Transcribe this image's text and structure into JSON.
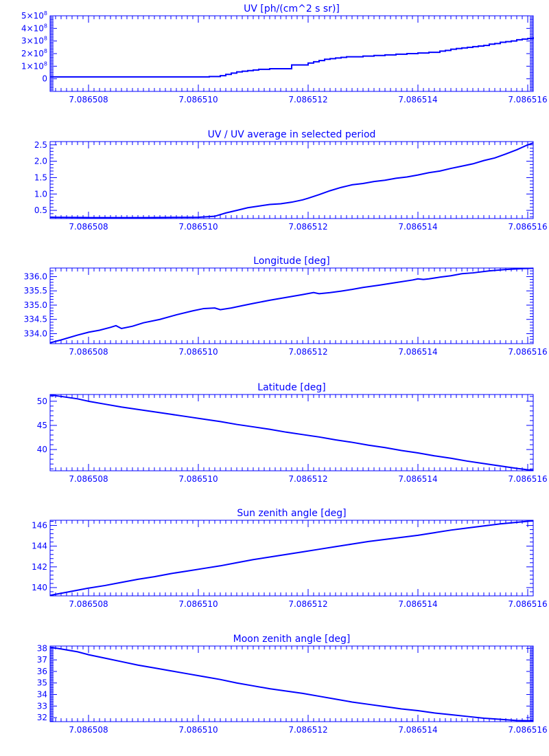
{
  "chart_data": [
    {
      "type": "line",
      "title": "UV [ph/(cm^2 s sr)]",
      "xlabel": "",
      "ylabel": "",
      "xlim": [
        7.0865073,
        7.0865161
      ],
      "ylim": [
        -100000000,
        500000000
      ],
      "x_ticks": [
        "7.086508",
        "7.086510",
        "7.086512",
        "7.086514",
        "7.086516"
      ],
      "y_ticks": [
        {
          "value": 0,
          "mantissa": "0",
          "exponent": ""
        },
        {
          "value": 100000000,
          "mantissa": "1×10",
          "exponent": "8"
        },
        {
          "value": 200000000,
          "mantissa": "2×10",
          "exponent": "8"
        },
        {
          "value": 300000000,
          "mantissa": "3×10",
          "exponent": "8"
        },
        {
          "value": 400000000,
          "mantissa": "4×10",
          "exponent": "8"
        },
        {
          "value": 500000000,
          "mantissa": "5×10",
          "exponent": "8"
        }
      ],
      "series": [
        {
          "step": true,
          "x": [
            7.0865073,
            7.086508,
            7.086509,
            7.08651,
            7.0865102,
            7.0865104,
            7.0865105,
            7.0865106,
            7.0865107,
            7.0865108,
            7.0865109,
            7.086511,
            7.0865111,
            7.0865113,
            7.0865115,
            7.0865117,
            7.0865118,
            7.086512,
            7.0865121,
            7.0865122,
            7.0865123,
            7.0865124,
            7.0865125,
            7.0865126,
            7.0865127,
            7.0865128,
            7.086513,
            7.0865132,
            7.0865134,
            7.0865136,
            7.0865138,
            7.086514,
            7.0865142,
            7.0865144,
            7.0865145,
            7.0865146,
            7.0865147,
            7.0865148,
            7.0865149,
            7.086515,
            7.0865151,
            7.0865152,
            7.0865153,
            7.0865154,
            7.0865155,
            7.0865156,
            7.0865157,
            7.0865158,
            7.0865159,
            7.086516,
            7.0865161
          ],
          "y": [
            15000000,
            15000000,
            15000000,
            15000000,
            18000000,
            25000000,
            35000000,
            45000000,
            55000000,
            60000000,
            65000000,
            70000000,
            75000000,
            80000000,
            80000000,
            110000000,
            110000000,
            125000000,
            135000000,
            145000000,
            155000000,
            160000000,
            165000000,
            170000000,
            175000000,
            175000000,
            180000000,
            185000000,
            190000000,
            195000000,
            200000000,
            205000000,
            210000000,
            220000000,
            225000000,
            235000000,
            240000000,
            245000000,
            250000000,
            255000000,
            260000000,
            265000000,
            275000000,
            280000000,
            290000000,
            295000000,
            300000000,
            310000000,
            315000000,
            320000000,
            330000000
          ]
        }
      ]
    },
    {
      "type": "line",
      "title": "UV / UV average in selected period",
      "xlabel": "",
      "ylabel": "",
      "xlim": [
        7.0865073,
        7.0865161
      ],
      "ylim": [
        0.25,
        2.6
      ],
      "x_ticks": [
        "7.086508",
        "7.086510",
        "7.086512",
        "7.086514",
        "7.086516"
      ],
      "y_ticks": [
        {
          "value": 0.5,
          "label": "0.5"
        },
        {
          "value": 1.0,
          "label": "1.0"
        },
        {
          "value": 1.5,
          "label": "1.5"
        },
        {
          "value": 2.0,
          "label": "2.0"
        },
        {
          "value": 2.5,
          "label": "2.5"
        }
      ],
      "series": [
        {
          "x": [
            7.0865073,
            7.086508,
            7.086509,
            7.08651,
            7.0865103,
            7.0865105,
            7.0865107,
            7.0865109,
            7.0865111,
            7.0865113,
            7.0865115,
            7.0865117,
            7.0865119,
            7.086512,
            7.0865122,
            7.0865124,
            7.0865126,
            7.0865128,
            7.086513,
            7.0865132,
            7.0865134,
            7.0865136,
            7.0865138,
            7.086514,
            7.0865142,
            7.0865144,
            7.0865146,
            7.0865148,
            7.086515,
            7.0865152,
            7.0865154,
            7.0865156,
            7.0865158,
            7.086516,
            7.0865161
          ],
          "y": [
            0.29,
            0.28,
            0.28,
            0.29,
            0.32,
            0.42,
            0.5,
            0.58,
            0.63,
            0.68,
            0.7,
            0.75,
            0.82,
            0.87,
            0.98,
            1.1,
            1.2,
            1.28,
            1.32,
            1.38,
            1.42,
            1.48,
            1.52,
            1.58,
            1.65,
            1.7,
            1.78,
            1.85,
            1.92,
            2.02,
            2.1,
            2.22,
            2.35,
            2.5,
            2.56
          ]
        }
      ]
    },
    {
      "type": "line",
      "title": "Longitude [deg]",
      "xlabel": "",
      "ylabel": "",
      "xlim": [
        7.0865073,
        7.0865161
      ],
      "ylim": [
        333.65,
        336.3
      ],
      "x_ticks": [
        "7.086508",
        "7.086510",
        "7.086512",
        "7.086514",
        "7.086516"
      ],
      "y_ticks": [
        {
          "value": 334.0,
          "label": "334.0"
        },
        {
          "value": 334.5,
          "label": "334.5"
        },
        {
          "value": 335.0,
          "label": "335.0"
        },
        {
          "value": 335.5,
          "label": "335.5"
        },
        {
          "value": 336.0,
          "label": "336.0"
        }
      ],
      "series": [
        {
          "x": [
            7.0865073,
            7.0865075,
            7.0865078,
            7.086508,
            7.0865082,
            7.0865084,
            7.0865085,
            7.0865086,
            7.0865088,
            7.086509,
            7.0865093,
            7.0865096,
            7.0865099,
            7.0865101,
            7.0865103,
            7.0865104,
            7.0865106,
            7.0865108,
            7.086511,
            7.0865113,
            7.0865116,
            7.0865119,
            7.0865121,
            7.0865122,
            7.0865124,
            7.0865126,
            7.0865128,
            7.086513,
            7.0865133,
            7.0865136,
            7.0865139,
            7.086514,
            7.0865141,
            7.0865142,
            7.0865144,
            7.0865146,
            7.0865148,
            7.086515,
            7.0865153,
            7.0865156,
            7.0865159,
            7.0865161
          ],
          "y": [
            333.68,
            333.78,
            333.95,
            334.05,
            334.12,
            334.22,
            334.28,
            334.18,
            334.26,
            334.38,
            334.5,
            334.66,
            334.8,
            334.88,
            334.9,
            334.84,
            334.9,
            334.98,
            335.06,
            335.17,
            335.27,
            335.37,
            335.44,
            335.4,
            335.44,
            335.49,
            335.55,
            335.62,
            335.7,
            335.79,
            335.88,
            335.92,
            335.9,
            335.92,
            335.98,
            336.03,
            336.1,
            336.13,
            336.2,
            336.25,
            336.28,
            336.29
          ]
        }
      ]
    },
    {
      "type": "line",
      "title": "Latitude [deg]",
      "xlabel": "",
      "ylabel": "",
      "xlim": [
        7.0865073,
        7.0865161
      ],
      "ylim": [
        35.6,
        51.4
      ],
      "x_ticks": [
        "7.086508",
        "7.086510",
        "7.086512",
        "7.086514",
        "7.086516"
      ],
      "y_ticks": [
        {
          "value": 40,
          "label": "40"
        },
        {
          "value": 45,
          "label": "45"
        },
        {
          "value": 50,
          "label": "50"
        }
      ],
      "series": [
        {
          "x": [
            7.0865073,
            7.0865075,
            7.0865078,
            7.086508,
            7.0865083,
            7.0865086,
            7.0865089,
            7.0865092,
            7.0865095,
            7.0865098,
            7.0865101,
            7.0865104,
            7.0865107,
            7.086511,
            7.0865113,
            7.0865116,
            7.0865119,
            7.0865122,
            7.0865125,
            7.0865128,
            7.0865131,
            7.0865134,
            7.0865137,
            7.086514,
            7.0865143,
            7.0865146,
            7.0865149,
            7.0865152,
            7.0865155,
            7.0865158,
            7.086516,
            7.0865161
          ],
          "y": [
            51.3,
            51.0,
            50.5,
            50.0,
            49.4,
            48.8,
            48.3,
            47.8,
            47.3,
            46.8,
            46.3,
            45.8,
            45.2,
            44.7,
            44.2,
            43.6,
            43.1,
            42.6,
            42.0,
            41.5,
            40.9,
            40.4,
            39.8,
            39.3,
            38.7,
            38.2,
            37.6,
            37.1,
            36.6,
            36.1,
            35.8,
            35.7
          ]
        }
      ]
    },
    {
      "type": "line",
      "title": "Sun zenith angle [deg]",
      "xlabel": "",
      "ylabel": "",
      "xlim": [
        7.0865073,
        7.0865161
      ],
      "ylim": [
        139.2,
        146.5
      ],
      "x_ticks": [
        "7.086508",
        "7.086510",
        "7.086512",
        "7.086514",
        "7.086516"
      ],
      "y_ticks": [
        {
          "value": 140,
          "label": "140"
        },
        {
          "value": 142,
          "label": "142"
        },
        {
          "value": 144,
          "label": "144"
        },
        {
          "value": 146,
          "label": "146"
        }
      ],
      "series": [
        {
          "x": [
            7.0865073,
            7.0865075,
            7.0865078,
            7.086508,
            7.0865083,
            7.0865086,
            7.0865089,
            7.0865092,
            7.0865095,
            7.0865098,
            7.0865101,
            7.0865104,
            7.0865107,
            7.086511,
            7.0865113,
            7.0865116,
            7.0865119,
            7.0865122,
            7.0865125,
            7.0865128,
            7.0865131,
            7.0865134,
            7.0865137,
            7.086514,
            7.0865143,
            7.0865146,
            7.0865149,
            7.0865152,
            7.0865155,
            7.0865158,
            7.0865161
          ],
          "y": [
            139.25,
            139.45,
            139.75,
            139.95,
            140.2,
            140.5,
            140.8,
            141.05,
            141.35,
            141.6,
            141.85,
            142.1,
            142.4,
            142.7,
            142.95,
            143.2,
            143.45,
            143.7,
            143.95,
            144.2,
            144.45,
            144.65,
            144.85,
            145.05,
            145.3,
            145.55,
            145.75,
            145.95,
            146.15,
            146.3,
            146.45
          ]
        }
      ]
    },
    {
      "type": "line",
      "title": "Moon zenith angle [deg]",
      "xlabel": "",
      "ylabel": "",
      "xlim": [
        7.0865073,
        7.0865161
      ],
      "ylim": [
        31.65,
        38.2
      ],
      "x_ticks": [
        "7.086508",
        "7.086510",
        "7.086512",
        "7.086514",
        "7.086516"
      ],
      "y_ticks": [
        {
          "value": 32,
          "label": "32"
        },
        {
          "value": 33,
          "label": "33"
        },
        {
          "value": 34,
          "label": "34"
        },
        {
          "value": 35,
          "label": "35"
        },
        {
          "value": 36,
          "label": "36"
        },
        {
          "value": 37,
          "label": "37"
        },
        {
          "value": 38,
          "label": "38"
        }
      ],
      "series": [
        {
          "x": [
            7.0865073,
            7.0865075,
            7.0865078,
            7.086508,
            7.0865083,
            7.0865086,
            7.0865089,
            7.0865092,
            7.0865095,
            7.0865098,
            7.0865101,
            7.0865104,
            7.0865107,
            7.086511,
            7.0865113,
            7.0865116,
            7.0865119,
            7.0865122,
            7.0865125,
            7.0865128,
            7.0865131,
            7.0865134,
            7.0865137,
            7.086514,
            7.0865143,
            7.0865146,
            7.0865149,
            7.0865152,
            7.0865155,
            7.0865158,
            7.0865161
          ],
          "y": [
            38.1,
            37.95,
            37.7,
            37.45,
            37.15,
            36.85,
            36.55,
            36.3,
            36.05,
            35.8,
            35.55,
            35.3,
            35.0,
            34.75,
            34.5,
            34.3,
            34.1,
            33.85,
            33.6,
            33.35,
            33.15,
            32.95,
            32.75,
            32.6,
            32.4,
            32.25,
            32.1,
            31.95,
            31.85,
            31.75,
            31.72
          ]
        }
      ]
    }
  ]
}
